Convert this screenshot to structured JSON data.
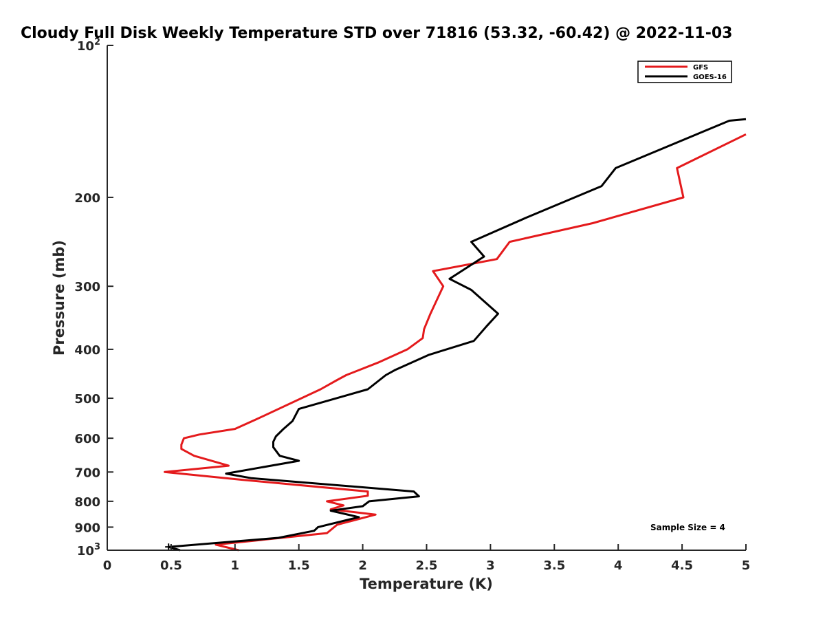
{
  "chart_data": {
    "type": "line",
    "title": "Cloudy Full Disk Weekly Temperature STD over 71816 (53.32, -60.42) @ 2022-11-03",
    "xlabel": "Temperature (K)",
    "ylabel": "Pressure (mb)",
    "xlim": [
      0,
      5
    ],
    "ylim": [
      100,
      1000
    ],
    "yscale": "log",
    "yreversed": true,
    "grid": false,
    "legend_position": "top-right",
    "x_ticks": [
      "0",
      "0.5",
      "1",
      "1.5",
      "2",
      "2.5",
      "3",
      "3.5",
      "4",
      "4.5",
      "5"
    ],
    "y_ticks": [
      {
        "value": 100,
        "label": "10",
        "exp": "2"
      },
      {
        "value": 200,
        "label": "200"
      },
      {
        "value": 300,
        "label": "300"
      },
      {
        "value": 400,
        "label": "400"
      },
      {
        "value": 500,
        "label": "500"
      },
      {
        "value": 600,
        "label": "600"
      },
      {
        "value": 700,
        "label": "700"
      },
      {
        "value": 800,
        "label": "800"
      },
      {
        "value": 900,
        "label": "900"
      },
      {
        "value": 1000,
        "label": "10",
        "exp": "3"
      }
    ],
    "annotation": "Sample Size = 4",
    "series": [
      {
        "name": "GFS",
        "color": "#e41a1c",
        "points": [
          [
            5.0,
            150
          ],
          [
            4.46,
            175
          ],
          [
            4.51,
            200
          ],
          [
            3.8,
            225
          ],
          [
            3.15,
            245
          ],
          [
            3.05,
            265
          ],
          [
            2.55,
            280
          ],
          [
            2.63,
            300
          ],
          [
            2.53,
            340
          ],
          [
            2.48,
            365
          ],
          [
            2.47,
            380
          ],
          [
            2.35,
            400
          ],
          [
            2.12,
            425
          ],
          [
            1.87,
            450
          ],
          [
            1.8,
            460
          ],
          [
            1.67,
            480
          ],
          [
            1.17,
            550
          ],
          [
            1.0,
            575
          ],
          [
            0.72,
            590
          ],
          [
            0.6,
            600
          ],
          [
            0.58,
            618
          ],
          [
            0.58,
            630
          ],
          [
            0.68,
            650
          ],
          [
            0.95,
            680
          ],
          [
            0.45,
            700
          ],
          [
            1.05,
            725
          ],
          [
            2.04,
            765
          ],
          [
            2.04,
            780
          ],
          [
            1.72,
            800
          ],
          [
            1.85,
            815
          ],
          [
            1.75,
            830
          ],
          [
            2.1,
            850
          ],
          [
            1.8,
            890
          ],
          [
            1.72,
            925
          ],
          [
            0.85,
            975
          ],
          [
            1.03,
            1000
          ]
        ]
      },
      {
        "name": "GOES-16",
        "color": "#000000",
        "points": [
          [
            5.0,
            140
          ],
          [
            4.87,
            141
          ],
          [
            3.98,
            175
          ],
          [
            3.87,
            190
          ],
          [
            3.27,
            220
          ],
          [
            2.85,
            245
          ],
          [
            2.95,
            262
          ],
          [
            2.68,
            290
          ],
          [
            2.85,
            305
          ],
          [
            3.06,
            340
          ],
          [
            2.97,
            360
          ],
          [
            2.87,
            385
          ],
          [
            2.52,
            410
          ],
          [
            2.25,
            440
          ],
          [
            2.18,
            450
          ],
          [
            2.04,
            480
          ],
          [
            1.5,
            525
          ],
          [
            1.45,
            555
          ],
          [
            1.38,
            575
          ],
          [
            1.32,
            595
          ],
          [
            1.3,
            610
          ],
          [
            1.3,
            625
          ],
          [
            1.35,
            650
          ],
          [
            1.5,
            665
          ],
          [
            0.93,
            705
          ],
          [
            1.13,
            720
          ],
          [
            2.4,
            765
          ],
          [
            2.44,
            782
          ],
          [
            2.05,
            800
          ],
          [
            2.0,
            818
          ],
          [
            1.75,
            835
          ],
          [
            1.97,
            860
          ],
          [
            1.65,
            900
          ],
          [
            1.62,
            915
          ],
          [
            1.34,
            945
          ],
          [
            0.48,
            985
          ],
          [
            0.57,
            1000
          ]
        ]
      }
    ]
  }
}
